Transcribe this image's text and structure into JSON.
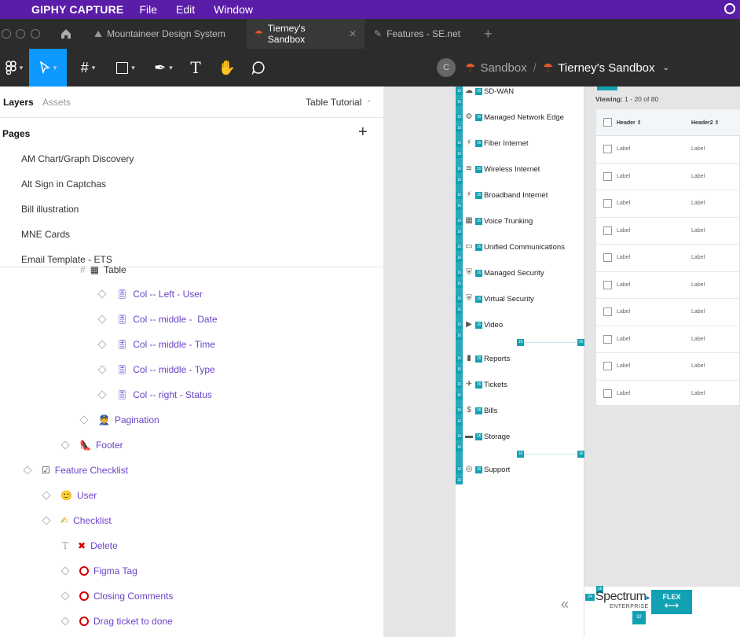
{
  "menubar": {
    "app_name": "GIPHY CAPTURE",
    "menus": [
      "File",
      "Edit",
      "Window"
    ]
  },
  "tabs": [
    {
      "label": "Mountaineer Design System",
      "active": false
    },
    {
      "label": "Tierney's Sandbox",
      "active": true
    },
    {
      "label": "Features - SE.net",
      "active": false
    }
  ],
  "toolbar": {
    "breadcrumb_project": "Sandbox",
    "breadcrumb_separator": "/",
    "breadcrumb_file": "Tierney's Sandbox",
    "avatar_letter": "C"
  },
  "left_panel": {
    "tab_layers": "Layers",
    "tab_assets": "Assets",
    "page_selector": "Table Tutorial",
    "pages_heading": "Pages",
    "pages": [
      "AM Chart/Graph Discovery",
      "Alt Sign in Captchas",
      "Bill illustration",
      "MNE Cards",
      "Email Template - ETS"
    ],
    "layers": [
      {
        "label": "Table",
        "icon": "▦"
      },
      {
        "label": "Col -- Left - User",
        "icon": "🎚"
      },
      {
        "label": "Col -- middle -  Date",
        "icon": "🎚"
      },
      {
        "label": "Col -- middle - Time",
        "icon": "🎚"
      },
      {
        "label": "Col -- middle - Type",
        "icon": "🎚"
      },
      {
        "label": "Col -- right - Status",
        "icon": "🎚"
      },
      {
        "label": "Pagination",
        "icon": "👮"
      },
      {
        "label": "Footer",
        "icon": "👠"
      },
      {
        "label": "Feature Checklist",
        "icon": "☑"
      },
      {
        "label": "User",
        "icon": "🙂"
      },
      {
        "label": "Checklist",
        "icon": "✍"
      },
      {
        "label": "Delete",
        "icon": "✖"
      },
      {
        "label": "Figma Tag",
        "icon": "⭕"
      },
      {
        "label": "Closing Comments",
        "icon": "⭕"
      },
      {
        "label": "Drag ticket to done",
        "icon": "⭕"
      }
    ]
  },
  "canvas": {
    "badge_text": "16",
    "nav_items": [
      "SD-WAN",
      "Managed Network Edge",
      "Fiber Internet",
      "Wireless Internet",
      "Broadband Internet",
      "Voice Trunking",
      "Unified Communications",
      "Managed Security",
      "Virtual Security",
      "Video",
      "Reports",
      "Tickets",
      "Bills",
      "Storage",
      "Support"
    ],
    "viewing_label": "Viewing:",
    "viewing_range": "1 - 20 of 80",
    "table_headers": [
      "Header",
      "Header2"
    ],
    "row_label": "Label",
    "row_count": 10,
    "brand_name": "Spectrum",
    "brand_sub": "ENTERPRISE",
    "flex_label": "FLEX",
    "flex_arrows": "⟷",
    "measure_24": "24",
    "measure_32": "32",
    "collapse_icon": "«",
    "colors": {
      "teal": "#12a1b3",
      "figma_blue": "#0d99ff",
      "purple_menubar": "#5a1da8"
    }
  }
}
